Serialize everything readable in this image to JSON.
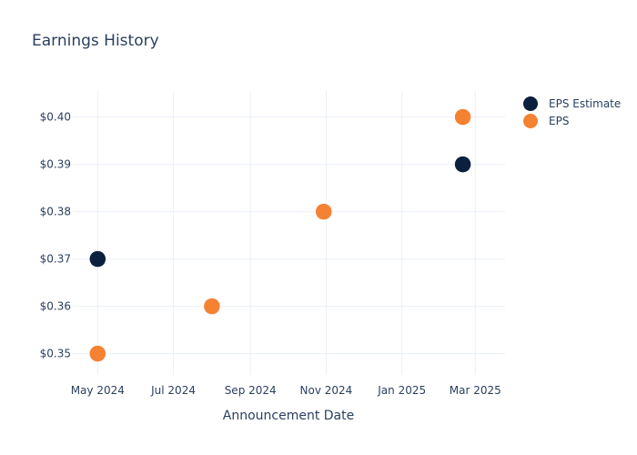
{
  "chart_data": {
    "type": "scatter",
    "title": "Earnings History",
    "xlabel": "Announcement Date",
    "ylabel": "",
    "x_axis_type": "date",
    "x_range": [
      "2024-04-11",
      "2025-03-25"
    ],
    "y_range": [
      0.3455,
      0.4055
    ],
    "x_ticks": [
      {
        "date": "2024-05-01",
        "label": "May 2024"
      },
      {
        "date": "2024-07-01",
        "label": "Jul 2024"
      },
      {
        "date": "2024-09-01",
        "label": "Sep 2024"
      },
      {
        "date": "2024-11-01",
        "label": "Nov 2024"
      },
      {
        "date": "2025-01-01",
        "label": "Jan 2025"
      },
      {
        "date": "2025-03-01",
        "label": "Mar 2025"
      }
    ],
    "y_ticks": [
      {
        "value": 0.35,
        "label": "$0.35"
      },
      {
        "value": 0.36,
        "label": "$0.36"
      },
      {
        "value": 0.37,
        "label": "$0.37"
      },
      {
        "value": 0.38,
        "label": "$0.38"
      },
      {
        "value": 0.39,
        "label": "$0.39"
      },
      {
        "value": 0.4,
        "label": "$0.40"
      }
    ],
    "grid": true,
    "legend_position": "top-right",
    "series": [
      {
        "name": "EPS Estimate",
        "color": "#0b1f3f",
        "points": [
          {
            "x": "2024-05-01",
            "y": 0.37
          },
          {
            "x": "2024-08-01",
            "y": 0.36
          },
          {
            "x": "2024-10-30",
            "y": 0.38
          },
          {
            "x": "2025-02-19",
            "y": 0.39
          }
        ]
      },
      {
        "name": "EPS",
        "color": "#f58233",
        "points": [
          {
            "x": "2024-05-01",
            "y": 0.35
          },
          {
            "x": "2024-08-01",
            "y": 0.36
          },
          {
            "x": "2024-10-30",
            "y": 0.38
          },
          {
            "x": "2025-02-19",
            "y": 0.4
          }
        ]
      }
    ]
  }
}
